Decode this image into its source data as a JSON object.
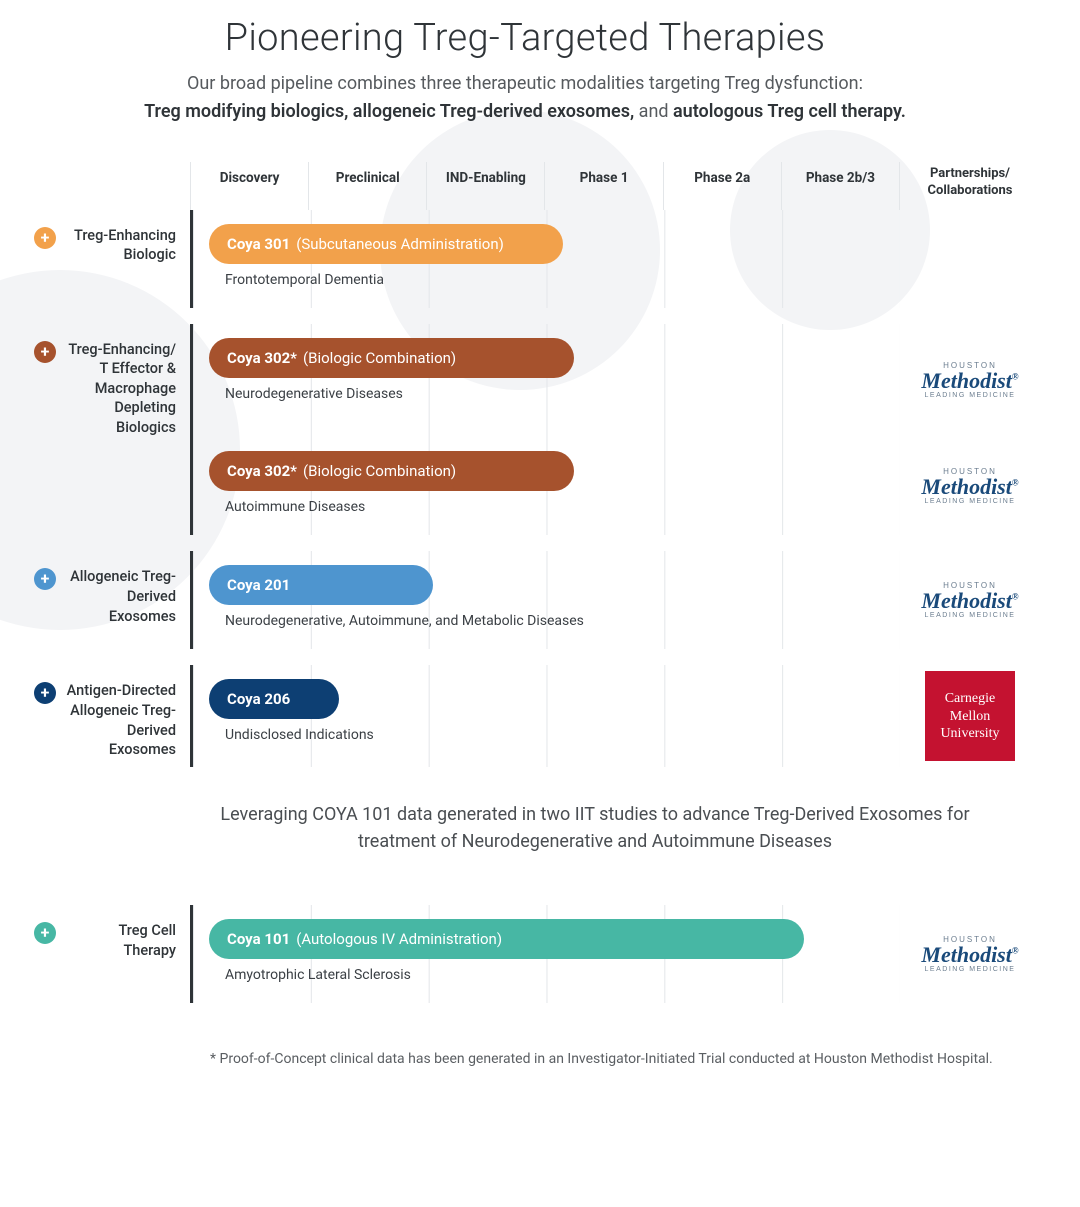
{
  "title": "Pioneering Treg-Targeted Therapies",
  "subtitle_plain": "Our broad pipeline combines three therapeutic modalities targeting Treg dysfunction:",
  "subtitle_bold1": "Treg modifying biologics,",
  "subtitle_bold2": "allogeneic Treg-derived exosomes,",
  "subtitle_join": " and ",
  "subtitle_bold3": "autologous Treg cell therapy.",
  "phases": [
    "Discovery",
    "Preclinical",
    "IND-Enabling",
    "Phase 1",
    "Phase 2a",
    "Phase 2b/3"
  ],
  "partners_header": "Partnerships/ Collaborations",
  "phase_count": 6,
  "colors": {
    "orange": "#f2a14b",
    "brown": "#a6522d",
    "blue": "#4e95cf",
    "navy": "#0d3f73",
    "teal": "#47b7a4",
    "methodist": "#1a4a7a",
    "cmu_bg": "#c41230",
    "plus_orange": "#f2a14b",
    "plus_brown": "#a6522d",
    "plus_blue": "#4e95cf",
    "plus_navy": "#0d3f73",
    "plus_teal": "#47b7a4"
  },
  "rows": [
    {
      "category": "Treg-Enhancing Biologic",
      "plus_color": "#f2a14b",
      "bars": [
        {
          "name": "Coya 301",
          "detail": "(Subcutaneous Administration)",
          "color": "#f2a14b",
          "width_phases": 3.0,
          "indication": "Frontotemporal Dementia",
          "partner": null
        }
      ]
    },
    {
      "category": "Treg-Enhancing/ T Effector & Macrophage Depleting Biologics",
      "plus_color": "#a6522d",
      "bars": [
        {
          "name": "Coya 302*",
          "detail": "(Biologic Combination)",
          "color": "#a6522d",
          "width_phases": 3.1,
          "indication": "Neurodegenerative Diseases",
          "partner": "methodist"
        },
        {
          "name": "Coya 302*",
          "detail": "(Biologic Combination)",
          "color": "#a6522d",
          "width_phases": 3.1,
          "indication": "Autoimmune Diseases",
          "partner": "methodist"
        }
      ]
    },
    {
      "category": "Allogeneic Treg-Derived Exosomes",
      "plus_color": "#4e95cf",
      "bars": [
        {
          "name": "Coya 201",
          "detail": "",
          "color": "#4e95cf",
          "width_phases": 1.9,
          "indication": "Neurodegenerative, Autoimmune, and Metabolic Diseases",
          "partner": "methodist"
        }
      ]
    },
    {
      "category": "Antigen-Directed Allogeneic Treg-Derived Exosomes",
      "plus_color": "#0d3f73",
      "bars": [
        {
          "name": "Coya 206",
          "detail": "",
          "color": "#0d3f73",
          "width_phases": 1.1,
          "indication": "Undisclosed Indications",
          "partner": "cmu"
        }
      ]
    }
  ],
  "interlude": "Leveraging COYA 101 data generated in two IIT studies to advance Treg-Derived Exosomes for treatment of Neurodegenerative and Autoimmune Diseases",
  "row_after": {
    "category": "Treg Cell Therapy",
    "plus_color": "#47b7a4",
    "bars": [
      {
        "name": "Coya 101",
        "detail": "(Autologous IV Administration)",
        "color": "#47b7a4",
        "width_phases": 5.05,
        "indication": "Amyotrophic Lateral Sclerosis",
        "partner": "methodist"
      }
    ]
  },
  "footnote": "* Proof-of-Concept clinical data has been generated in an Investigator-Initiated Trial conducted at Houston Methodist Hospital.",
  "partner_logos": {
    "methodist": {
      "small": "HOUSTON",
      "big": "Methodist",
      "tag": "LEADING MEDICINE"
    },
    "cmu": {
      "text": "Carnegie Mellon University"
    }
  }
}
